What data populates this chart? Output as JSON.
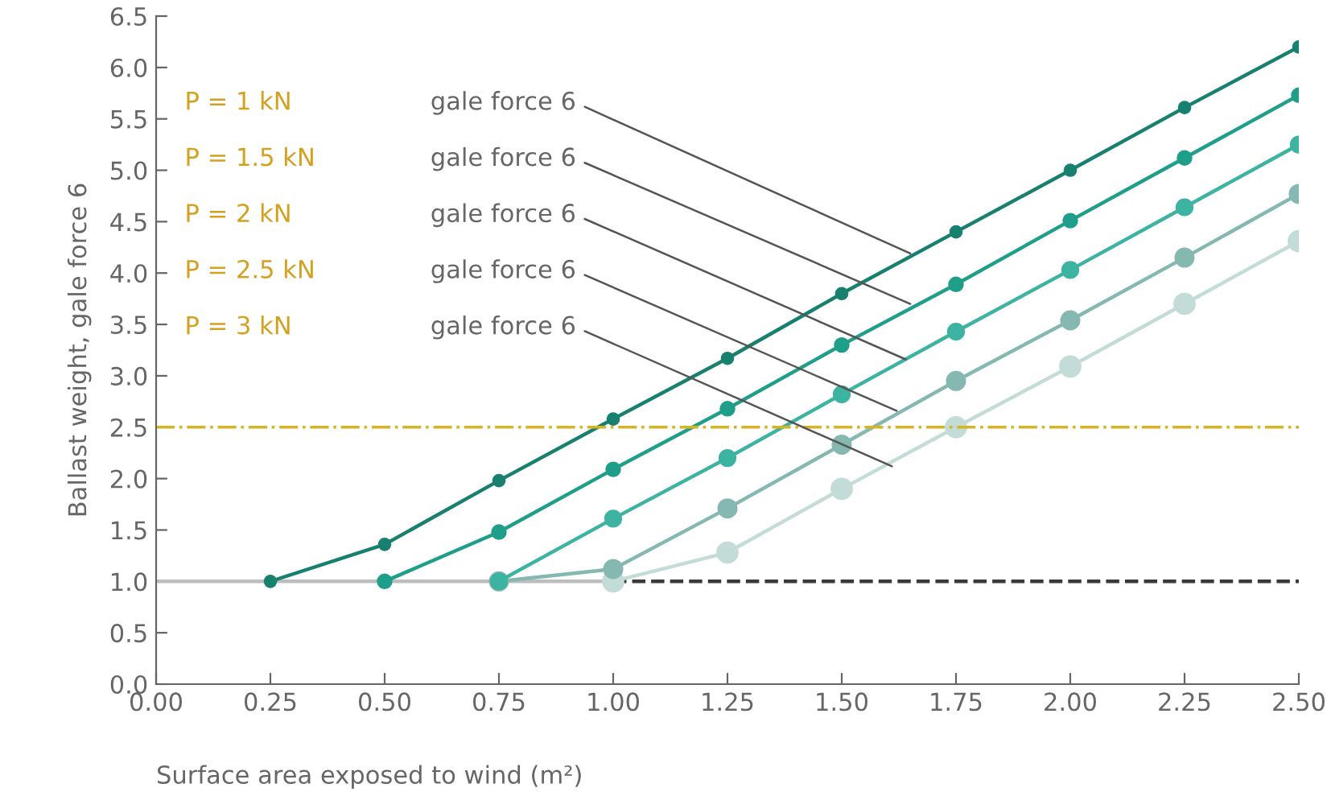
{
  "chart_data": {
    "type": "line",
    "xlabel": "Surface area exposed to wind (m²)",
    "ylabel": "Ballast weight, gale force 6",
    "xlim": [
      0,
      2.5
    ],
    "xticks": [
      {
        "value": 0,
        "label": "0.00"
      },
      {
        "value": 0.25,
        "label": "0.25"
      },
      {
        "value": 0.5,
        "label": "0.50"
      },
      {
        "value": 0.75,
        "label": "0.75"
      },
      {
        "value": 1,
        "label": "1.00"
      },
      {
        "value": 1.25,
        "label": "1.25"
      },
      {
        "value": 1.5,
        "label": "1.50"
      },
      {
        "value": 1.75,
        "label": "1.75"
      },
      {
        "value": 2,
        "label": "2.00"
      },
      {
        "value": 2.25,
        "label": "2.25"
      },
      {
        "value": 2.5,
        "label": "2.50"
      }
    ],
    "ylim": [
      0,
      6.5
    ],
    "yticks": [
      {
        "value": 0,
        "label": "0.0"
      },
      0.5,
      {
        "value": 1,
        "label": "1.0"
      },
      1.5,
      {
        "value": 2,
        "label": "2.0"
      },
      2.5,
      {
        "value": 3,
        "label": "3.0"
      },
      3.5,
      {
        "value": 4,
        "label": "4.0"
      },
      4.5,
      {
        "value": 5,
        "label": "5.0"
      },
      5.5,
      {
        "value": 6,
        "label": "6.0"
      },
      6.5
    ],
    "grid": false,
    "legend": false,
    "marker": "circle",
    "line_style": "solid",
    "series": [
      {
        "color": "#bdbdbd",
        "marker": "none",
        "x": [
          0,
          1.0
        ],
        "values": [
          1.0,
          1.0
        ]
      },
      {
        "color": "#3a3a3a",
        "marker": "none",
        "line_style": "dashed",
        "x": [
          1.0,
          2.5
        ],
        "values": [
          1.0,
          1.0
        ]
      },
      {
        "color": "#c3dcd7",
        "x": [
          1.0,
          1.25,
          1.5,
          1.75,
          2.0,
          2.25,
          2.5
        ],
        "values": [
          1.0,
          1.28,
          1.9,
          2.5,
          3.09,
          3.7,
          4.31
        ]
      },
      {
        "color": "#86b8b2",
        "x": [
          0.75,
          1.0,
          1.25,
          1.5,
          1.75,
          2.0,
          2.25,
          2.5
        ],
        "values": [
          1.0,
          1.12,
          1.71,
          2.33,
          2.95,
          3.54,
          4.15,
          4.77
        ]
      },
      {
        "color": "#3db3a2",
        "x": [
          0.75,
          1.0,
          1.25,
          1.5,
          1.75,
          2.0,
          2.25,
          2.5
        ],
        "values": [
          1.0,
          1.61,
          2.2,
          2.82,
          3.43,
          4.03,
          4.64,
          5.25
        ]
      },
      {
        "color": "#1f9e89",
        "x": [
          0.5,
          0.75,
          1.0,
          1.25,
          1.5,
          1.75,
          2.0,
          2.25,
          2.5
        ],
        "values": [
          1.0,
          1.48,
          2.09,
          2.68,
          3.3,
          3.89,
          4.51,
          5.12,
          5.73
        ]
      },
      {
        "color": "#18806f",
        "x": [
          0.25,
          0.5,
          0.75,
          1.0,
          1.25,
          1.5,
          1.75,
          2.0,
          2.25,
          2.5
        ],
        "values": [
          1.0,
          1.36,
          1.98,
          2.58,
          3.17,
          3.8,
          4.4,
          5.0,
          5.61,
          6.2
        ]
      }
    ],
    "ref_lines": [
      {
        "axis": "y",
        "value": 2.5,
        "color": "#d8b420",
        "line_style": "dashdot"
      }
    ],
    "annotations": [
      "P = 1 kN",
      "P = 1.5 kN",
      "P = 2 kN",
      "P = 2.5 kN",
      "P = 3 kN",
      {
        "text": "gale force 6",
        "x": 1.65,
        "y": 4.19
      },
      {
        "text": "gale force 6",
        "x": 1.65,
        "y": 3.7
      },
      {
        "text": "gale force 6",
        "x": 1.64,
        "y": 3.16
      },
      {
        "text": "gale force 6",
        "x": 1.62,
        "y": 2.66
      },
      {
        "text": "gale force 6",
        "x": 1.61,
        "y": 2.12
      }
    ]
  }
}
